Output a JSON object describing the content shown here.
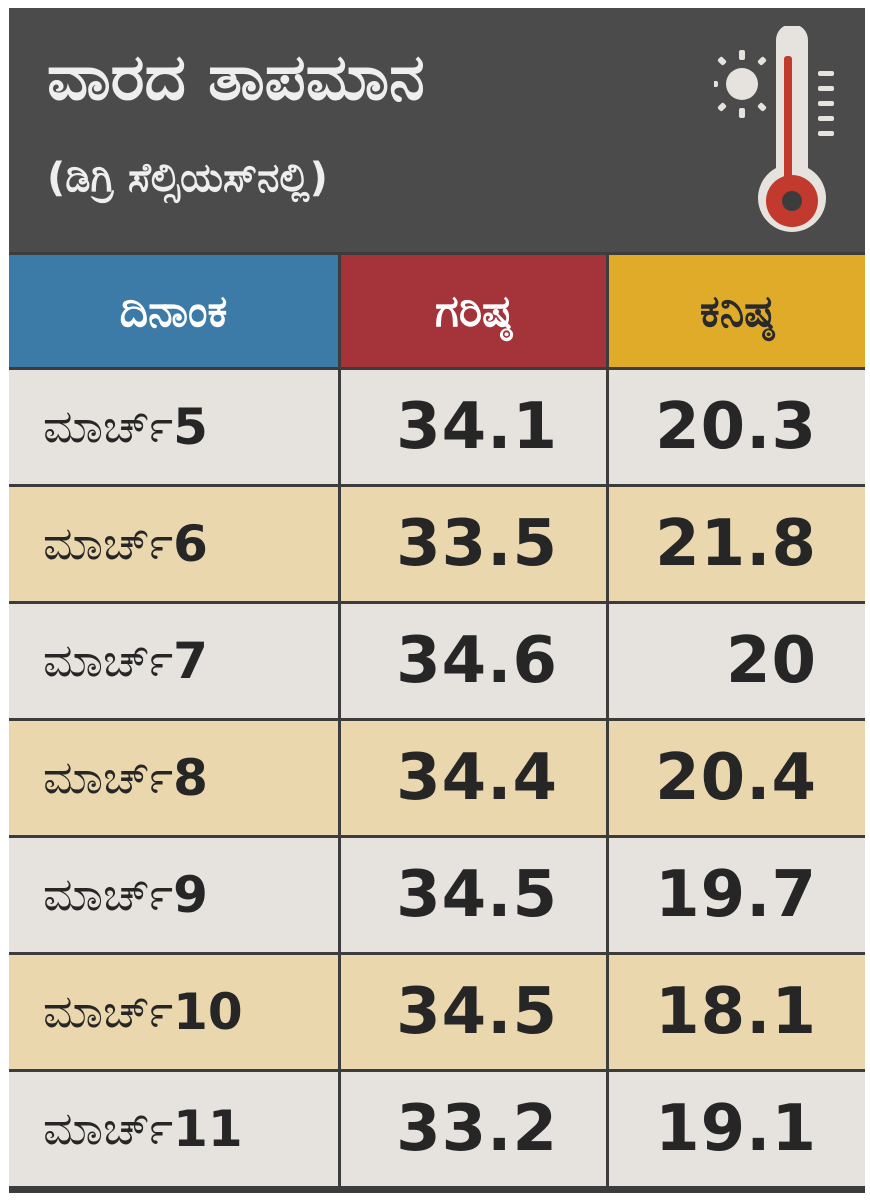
{
  "header": {
    "title": "ವಾರದ ತಾಪಮಾನ",
    "subtitle": "(ಡಿಗ್ರಿ ಸೆಲ್ಸಿಯಸ್‌ನಲ್ಲಿ)",
    "icon": "thermometer-sun-icon"
  },
  "colors": {
    "header_bg": "#4b4b4b",
    "date_header": "#3c7aa7",
    "max_header": "#a4333a",
    "min_header": "#e1ab2a",
    "row_light": "#e6e2dd",
    "row_tan": "#ead7ad",
    "thermometer_red": "#c23a2e"
  },
  "chart_data": {
    "type": "table",
    "title": "ವಾರದ ತಾಪಮಾನ",
    "subtitle": "(ಡಿಗ್ರಿ ಸೆಲ್ಸಿಯಸ್‌ನಲ್ಲಿ)",
    "columns": [
      "ದಿನಾಂಕ",
      "ಗರಿಷ್ಠ",
      "ಕನಿಷ್ಠ"
    ],
    "rows": [
      {
        "month": "ಮಾರ್ಚ್",
        "day": "5",
        "max": "34.1",
        "min": "20.3"
      },
      {
        "month": "ಮಾರ್ಚ್",
        "day": "6",
        "max": "33.5",
        "min": "21.8"
      },
      {
        "month": "ಮಾರ್ಚ್",
        "day": "7",
        "max": "34.6",
        "min": "20"
      },
      {
        "month": "ಮಾರ್ಚ್",
        "day": "8",
        "max": "34.4",
        "min": "20.4"
      },
      {
        "month": "ಮಾರ್ಚ್",
        "day": "9",
        "max": "34.5",
        "min": "19.7"
      },
      {
        "month": "ಮಾರ್ಚ್",
        "day": "10",
        "max": "34.5",
        "min": "18.1"
      },
      {
        "month": "ಮಾರ್ಚ್",
        "day": "11",
        "max": "33.2",
        "min": "19.1"
      }
    ]
  }
}
